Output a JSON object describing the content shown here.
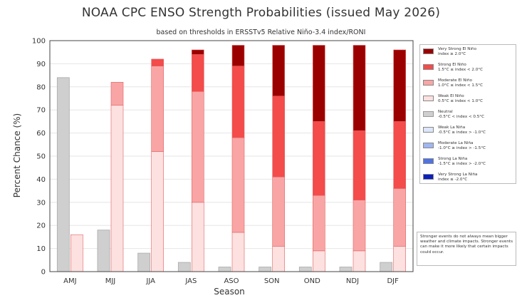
{
  "chart_data": {
    "type": "bar",
    "title": "NOAA CPC ENSO Strength Probabilities (issued May 2026)",
    "subtitle": "based on thresholds in ERSSTv5 Relative Niño-3.4 index/RONI",
    "xlabel": "Season",
    "ylabel": "Percent Chance (%)",
    "ylim": [
      0,
      100
    ],
    "yticks": [
      0,
      10,
      20,
      30,
      40,
      50,
      60,
      70,
      80,
      90,
      100
    ],
    "grid": true,
    "legend_placement": "right",
    "categories": [
      "AMJ",
      "MJJ",
      "JJA",
      "JAS",
      "ASO",
      "SON",
      "OND",
      "NDJ",
      "DJF"
    ],
    "neutral": {
      "name": "Neutral",
      "color": "#cfcfcf",
      "values": [
        84,
        18,
        8,
        4,
        2,
        2,
        2,
        2,
        4
      ]
    },
    "series": [
      {
        "name": "Weak El Niño",
        "color": "#fde0e0",
        "values": [
          16,
          72,
          52,
          30,
          17,
          11,
          9,
          9,
          11
        ]
      },
      {
        "name": "Moderate El Niño",
        "color": "#f9a5a5",
        "values": [
          0,
          10,
          37,
          48,
          41,
          30,
          24,
          22,
          25
        ]
      },
      {
        "name": "Strong El Niño",
        "color": "#f44b4b",
        "values": [
          0,
          0,
          3,
          16,
          31,
          35,
          32,
          30,
          29
        ]
      },
      {
        "name": "Very Strong El Niño",
        "color": "#9b0000",
        "values": [
          0,
          0,
          0,
          2,
          9,
          22,
          33,
          37,
          31
        ]
      }
    ],
    "legend": [
      {
        "label": "Very Strong El Niño",
        "range": "index ≥ 2.0°C",
        "color": "#9b0000"
      },
      {
        "label": "Strong El Niño",
        "range": "1.5°C ≤ index < 2.0°C",
        "color": "#f44b4b"
      },
      {
        "label": "Moderate El Niño",
        "range": "1.0°C ≤ index < 1.5°C",
        "color": "#f9a5a5"
      },
      {
        "label": "Weak El Niño",
        "range": "0.5°C ≤ index < 1.0°C",
        "color": "#fde0e0"
      },
      {
        "label": "Neutral",
        "range": "-0.5°C < index < 0.5°C",
        "color": "#cfcfcf"
      },
      {
        "label": "Weak La Niña",
        "range": "-0.5°C ≥ index > -1.0°C",
        "color": "#dde6fb"
      },
      {
        "label": "Moderate La Niña",
        "range": "-1.0°C ≥ index > -1.5°C",
        "color": "#9fb6f0"
      },
      {
        "label": "Strong La Niña",
        "range": "-1.5°C ≥ index > -2.0°C",
        "color": "#4f73e6"
      },
      {
        "label": "Very Strong La Niña",
        "range": "index ≤ -2.0°C",
        "color": "#0a1fbf"
      }
    ],
    "note": "Stronger events do not always mean bigger weather and climate impacts. Stronger events can make it more likely that certain impacts could occur."
  }
}
